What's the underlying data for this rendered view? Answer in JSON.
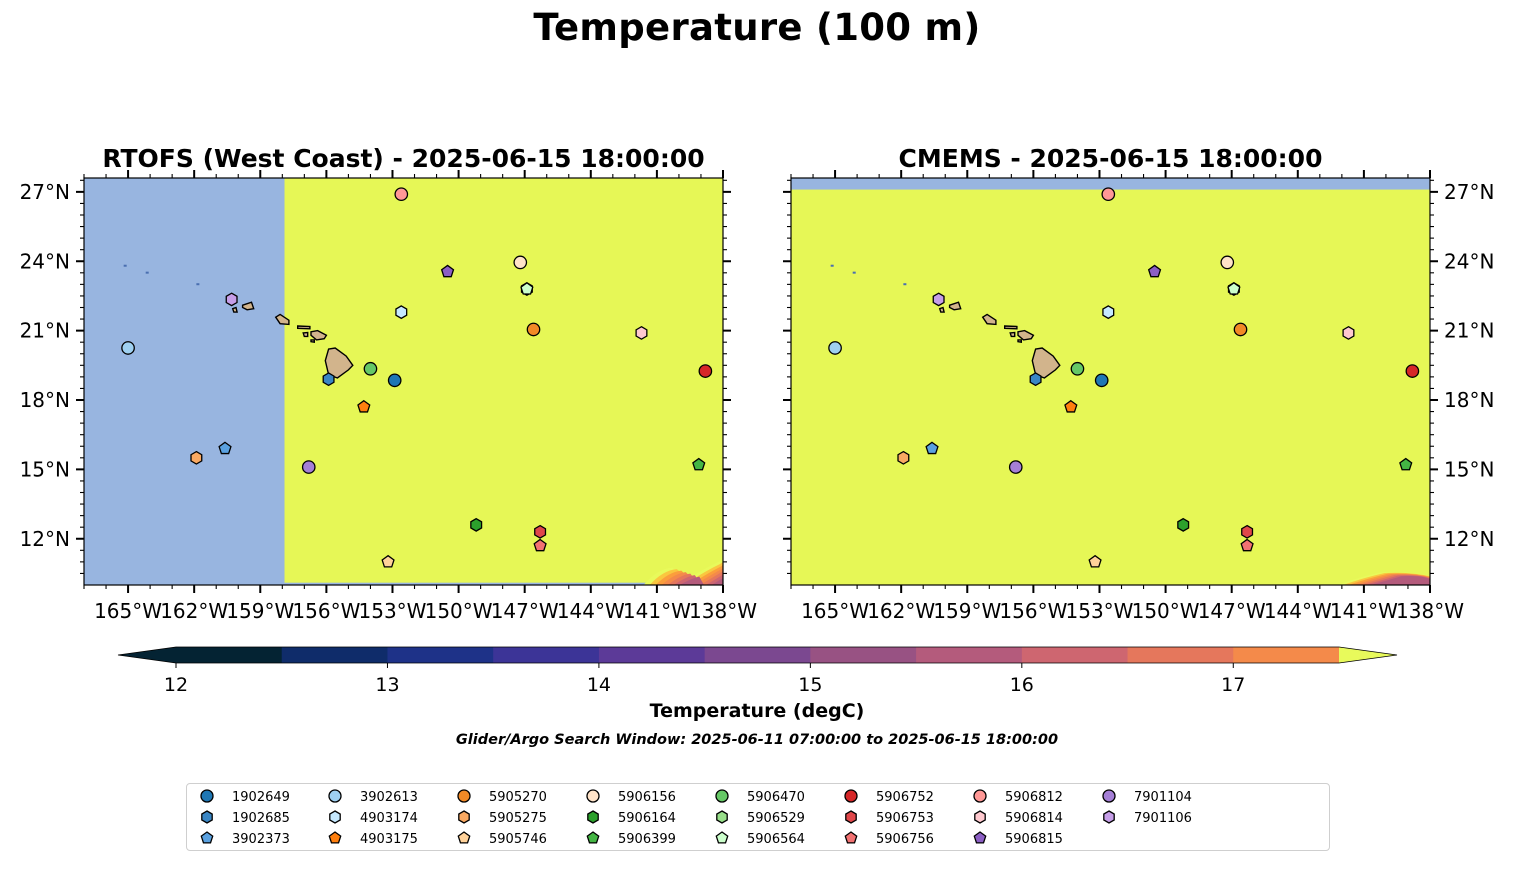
{
  "figure": {
    "title": "Temperature (100 m)",
    "search_window": "Glider/Argo Search Window: 2025-06-11 07:00:00 to 2025-06-15 18:00:00"
  },
  "chart_data": [
    {
      "type": "map",
      "title": "RTOFS (West Coast) - 2025-06-15 18:00:00",
      "lon_range": [
        -167,
        -138
      ],
      "lat_range": [
        10,
        27.6
      ],
      "x_ticks": [
        "165°W",
        "162°W",
        "159°W",
        "156°W",
        "153°W",
        "150°W",
        "147°W",
        "144°W",
        "141°W",
        "138°W"
      ],
      "y_ticks": [
        "12°N",
        "15°N",
        "18°N",
        "21°N",
        "24°N",
        "27°N"
      ],
      "data_coverage": {
        "west_edge_lon": -157.9,
        "south_edge_lat": 10.1
      },
      "no_data_color": "#98b5e0",
      "field_color": "#e6f756",
      "warm_patch": "southeast corner, below 11°N, 13.5–17.5 degC"
    },
    {
      "type": "map",
      "title": "CMEMS - 2025-06-15 18:00:00",
      "lon_range": [
        -167,
        -138
      ],
      "lat_range": [
        10,
        27.6
      ],
      "x_ticks": [
        "165°W",
        "162°W",
        "159°W",
        "156°W",
        "153°W",
        "150°W",
        "147°W",
        "144°W",
        "141°W",
        "138°W"
      ],
      "y_ticks": [
        "12°N",
        "15°N",
        "18°N",
        "21°N",
        "24°N",
        "27°N"
      ],
      "data_coverage": {
        "north_edge_lat": 27.1
      },
      "no_data_color": "#98b5e0",
      "field_color": "#e6f756",
      "warm_patch": "southeast corner, below 10.5°N, 13–17 degC"
    }
  ],
  "colorbar": {
    "label": "Temperature (degC)",
    "min": 12,
    "max": 17.5,
    "step": 0.5,
    "extend": "both",
    "tick_labels": [
      "12",
      "13",
      "14",
      "15",
      "16",
      "17"
    ],
    "colors": [
      "#042333",
      "#0f2c6a",
      "#1e3288",
      "#3c3497",
      "#5c3a98",
      "#7b4890",
      "#985283",
      "#b45b7c",
      "#ce6670",
      "#e5775c",
      "#f48a4a",
      "#fb9e3c",
      "#fac73f",
      "#e8fa5b"
    ]
  },
  "floats": [
    {
      "id": "1902649",
      "marker": "circle",
      "color": "#1f77b4",
      "lon": -152.9,
      "lat": 18.85
    },
    {
      "id": "1902685",
      "marker": "hexagon",
      "color": "#3a86c4",
      "lon": -155.9,
      "lat": 18.9
    },
    {
      "id": "3902373",
      "marker": "pentagon",
      "color": "#5aa1e0",
      "lon": -160.6,
      "lat": 15.9
    },
    {
      "id": "3902613",
      "marker": "circle",
      "color": "#9fd0f1",
      "lon": -165.0,
      "lat": 20.25
    },
    {
      "id": "4903174",
      "marker": "hexagon",
      "color": "#c6e9ff",
      "lon": -152.6,
      "lat": 21.8
    },
    {
      "id": "4903175",
      "marker": "pentagon",
      "color": "#ff7f0e",
      "lon": -154.3,
      "lat": 17.7
    },
    {
      "id": "5905270",
      "marker": "circle",
      "color": "#f28a26",
      "lon": -146.6,
      "lat": 21.05
    },
    {
      "id": "5905275",
      "marker": "hexagon",
      "color": "#f9a962",
      "lon": -161.9,
      "lat": 15.5
    },
    {
      "id": "5905746",
      "marker": "pentagon",
      "color": "#ffd29a",
      "lon": -153.2,
      "lat": 11.0
    },
    {
      "id": "5906156",
      "marker": "circle",
      "color": "#ffe3c8",
      "lon": -147.2,
      "lat": 23.95
    },
    {
      "id": "5906164",
      "marker": "hexagon",
      "color": "#2ca02c",
      "lon": -149.2,
      "lat": 12.6
    },
    {
      "id": "5906399",
      "marker": "pentagon",
      "color": "#44b544",
      "lon": -139.1,
      "lat": 15.2
    },
    {
      "id": "5906470",
      "marker": "circle",
      "color": "#66c866",
      "lon": -154.0,
      "lat": 19.35
    },
    {
      "id": "5906529",
      "marker": "hexagon",
      "color": "#98df8a",
      "lon": -146.9,
      "lat": 22.8
    },
    {
      "id": "5906564",
      "marker": "pentagon",
      "color": "#ccffcc",
      "lon": -146.9,
      "lat": 22.8
    },
    {
      "id": "5906752",
      "marker": "circle",
      "color": "#d62728",
      "lon": -138.8,
      "lat": 19.25
    },
    {
      "id": "5906753",
      "marker": "hexagon",
      "color": "#e0474a",
      "lon": -146.3,
      "lat": 12.3
    },
    {
      "id": "5906756",
      "marker": "pentagon",
      "color": "#f27272",
      "lon": -146.3,
      "lat": 11.7
    },
    {
      "id": "5906812",
      "marker": "circle",
      "color": "#ff9896",
      "lon": -152.6,
      "lat": 26.9
    },
    {
      "id": "5906814",
      "marker": "hexagon",
      "color": "#ffc9cf",
      "lon": -141.7,
      "lat": 20.9
    },
    {
      "id": "5906815",
      "marker": "pentagon",
      "color": "#8c5fc4",
      "lon": -150.5,
      "lat": 23.55
    },
    {
      "id": "7901104",
      "marker": "circle",
      "color": "#a57fd6",
      "lon": -156.8,
      "lat": 15.1
    },
    {
      "id": "7901106",
      "marker": "hexagon",
      "color": "#c69ee8",
      "lon": -160.3,
      "lat": 22.35
    }
  ]
}
